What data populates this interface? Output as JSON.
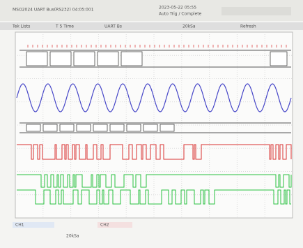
{
  "header": {
    "title": "MSO2024 UART Bus(RS232) 04:05:001",
    "date": "2023-05-22 05:55",
    "status": "Auto Trig / Complete"
  },
  "toolbar": [
    "Tek Lists",
    "T 5 Time",
    "UART Bs",
    "20kSa",
    "Refresh"
  ],
  "footer": {
    "ch1": "CH1",
    "ch2": "CH2",
    "rate": "20kSa"
  }
}
